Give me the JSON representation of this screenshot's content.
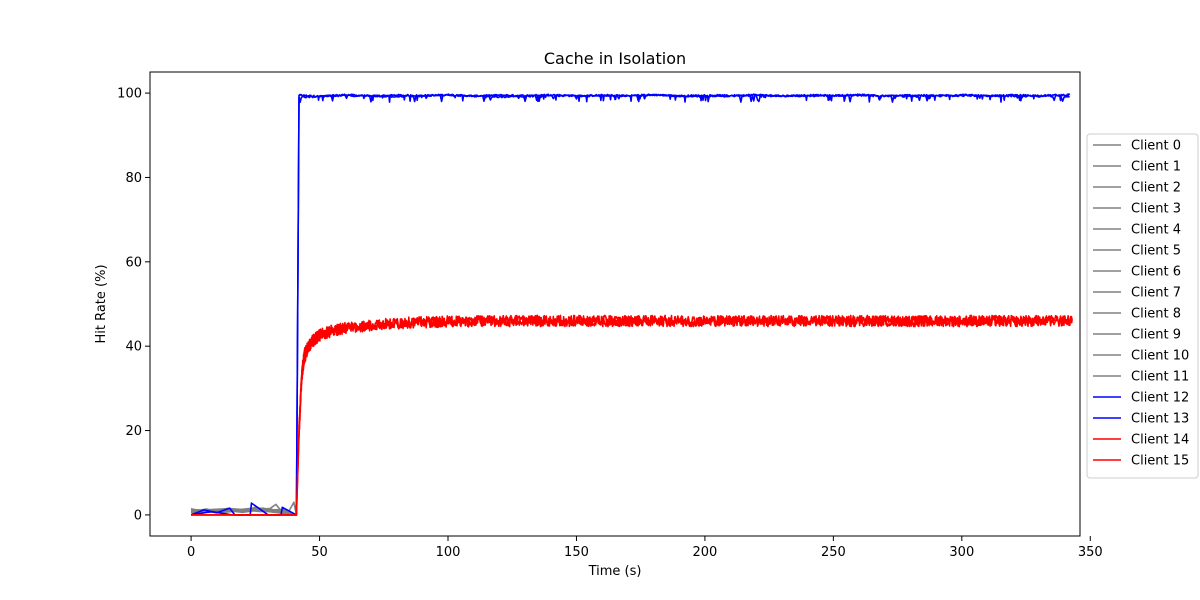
{
  "chart_data": {
    "type": "line",
    "title": "Cache in  Isolation",
    "xlabel": "Time (s)",
    "ylabel": "Hit Rate (%)",
    "xlim": [
      -16,
      346
    ],
    "ylim": [
      -5,
      105
    ],
    "xticks": [
      0,
      50,
      100,
      150,
      200,
      250,
      300,
      350
    ],
    "yticks": [
      0,
      20,
      40,
      60,
      80,
      100
    ],
    "grid": false,
    "legend_position": "right",
    "colors": {
      "gray": "#808080",
      "blue": "#0000ff",
      "red": "#ff0000"
    },
    "series": [
      {
        "name": "Client 0",
        "color": "gray",
        "x": [
          0,
          5,
          10,
          15,
          20,
          25,
          30,
          33,
          35,
          38,
          40,
          41
        ],
        "y": [
          1.5,
          0.5,
          1.2,
          0.8,
          1.0,
          1.8,
          1.2,
          2.5,
          1.0,
          0.8,
          3.0,
          0
        ]
      },
      {
        "name": "Client 1",
        "color": "gray",
        "x": [
          0,
          6,
          12,
          18,
          24,
          30,
          36,
          41
        ],
        "y": [
          0.8,
          1.4,
          0.6,
          1.2,
          1.6,
          0.9,
          1.3,
          0
        ]
      },
      {
        "name": "Client 2",
        "color": "gray",
        "x": [
          0,
          7,
          14,
          21,
          28,
          35,
          41
        ],
        "y": [
          1.0,
          0.6,
          1.5,
          0.9,
          1.2,
          0.7,
          0
        ]
      },
      {
        "name": "Client 3",
        "color": "gray",
        "x": [
          0,
          8,
          16,
          24,
          32,
          41
        ],
        "y": [
          0.6,
          1.1,
          0.8,
          1.4,
          1.0,
          0
        ]
      },
      {
        "name": "Client 4",
        "color": "gray",
        "x": [
          0,
          9,
          18,
          27,
          36,
          41
        ],
        "y": [
          1.2,
          0.7,
          1.3,
          0.8,
          1.1,
          0
        ]
      },
      {
        "name": "Client 5",
        "color": "gray",
        "x": [
          0,
          10,
          20,
          30,
          41
        ],
        "y": [
          0.9,
          1.3,
          0.6,
          1.5,
          0
        ]
      },
      {
        "name": "Client 6",
        "color": "gray",
        "x": [
          0,
          11,
          22,
          33,
          41
        ],
        "y": [
          1.1,
          0.5,
          1.2,
          0.9,
          0
        ]
      },
      {
        "name": "Client 7",
        "color": "gray",
        "x": [
          0,
          12,
          24,
          36,
          41
        ],
        "y": [
          0.7,
          1.2,
          1.0,
          1.3,
          0
        ]
      },
      {
        "name": "Client 8",
        "color": "gray",
        "x": [
          0,
          13,
          26,
          39,
          41
        ],
        "y": [
          1.3,
          0.8,
          1.4,
          0.6,
          0
        ]
      },
      {
        "name": "Client 9",
        "color": "gray",
        "x": [
          0,
          14,
          28,
          41
        ],
        "y": [
          0.5,
          1.0,
          1.6,
          0
        ]
      },
      {
        "name": "Client 10",
        "color": "gray",
        "x": [
          0,
          15,
          30,
          41
        ],
        "y": [
          1.0,
          1.5,
          0.8,
          0
        ]
      },
      {
        "name": "Client 11",
        "color": "gray",
        "x": [
          0,
          16,
          32,
          41
        ],
        "y": [
          0.8,
          0.9,
          1.2,
          0
        ]
      },
      {
        "name": "Client 12",
        "color": "blue",
        "x": [
          0,
          5,
          10,
          15,
          17,
          23,
          23.5,
          30,
          35,
          35.5,
          41,
          42,
          50,
          60,
          70,
          80,
          90,
          100,
          110,
          120,
          130,
          140,
          150,
          160,
          170,
          180,
          190,
          200,
          210,
          220,
          230,
          240,
          250,
          260,
          270,
          280,
          290,
          300,
          310,
          320,
          330,
          342
        ],
        "y": [
          0,
          1.2,
          0.5,
          1.6,
          0,
          0,
          2.8,
          0,
          0,
          1.8,
          0,
          99.5,
          99.2,
          99.6,
          99.3,
          99.5,
          99.4,
          99.6,
          99.3,
          99.5,
          99.4,
          99.6,
          99.3,
          99.5,
          99.4,
          99.6,
          99.3,
          99.5,
          99.4,
          99.6,
          99.3,
          99.5,
          99.4,
          99.6,
          99.3,
          99.5,
          99.4,
          99.6,
          99.3,
          99.5,
          99.4,
          99.6
        ]
      },
      {
        "name": "Client 13",
        "color": "blue",
        "x": [
          0,
          8,
          16,
          41,
          42,
          60,
          80,
          100,
          120,
          140,
          160,
          180,
          200,
          220,
          240,
          260,
          280,
          300,
          320,
          342
        ],
        "y": [
          0,
          0.8,
          0,
          0,
          99.0,
          99.4,
          99.2,
          99.5,
          99.1,
          99.4,
          99.3,
          99.5,
          99.2,
          99.4,
          99.3,
          99.5,
          99.2,
          99.4,
          99.3,
          99.2
        ]
      },
      {
        "name": "Client 14",
        "color": "red",
        "x": [
          0,
          41,
          42,
          43,
          44,
          46,
          48,
          50,
          55,
          60,
          70,
          80,
          90,
          100,
          110,
          120,
          130,
          140,
          150,
          160,
          170,
          180,
          190,
          200,
          210,
          220,
          230,
          240,
          250,
          260,
          270,
          280,
          290,
          300,
          310,
          320,
          330,
          343
        ],
        "y": [
          0,
          0,
          20,
          33,
          38,
          40.5,
          41.8,
          42.8,
          43.8,
          44.5,
          45.0,
          45.5,
          45.7,
          45.9,
          46.0,
          46.0,
          46.1,
          46.0,
          46.0,
          46.0,
          46.0,
          46.0,
          46.0,
          46.0,
          46.0,
          46.0,
          46.0,
          46.0,
          46.0,
          46.0,
          46.0,
          46.0,
          46.0,
          46.0,
          46.0,
          46.0,
          46.0,
          46.0
        ]
      },
      {
        "name": "Client 15",
        "color": "red",
        "x": [
          0,
          41,
          42,
          43,
          44,
          46,
          48,
          50,
          55,
          60,
          70,
          80,
          90,
          100,
          110,
          120,
          130,
          140,
          150,
          160,
          170,
          180,
          190,
          200,
          210,
          220,
          230,
          240,
          250,
          260,
          270,
          280,
          290,
          300,
          310,
          320,
          330,
          343
        ],
        "y": [
          0,
          0,
          19,
          32,
          37,
          40.0,
          41.5,
          42.5,
          43.5,
          44.3,
          44.9,
          45.3,
          45.6,
          45.8,
          45.9,
          45.9,
          46.0,
          45.9,
          46.0,
          45.9,
          46.0,
          45.9,
          46.0,
          45.9,
          46.0,
          45.9,
          46.0,
          45.9,
          46.0,
          45.9,
          46.0,
          45.9,
          46.0,
          45.9,
          46.0,
          45.9,
          46.0,
          45.9
        ]
      }
    ]
  }
}
